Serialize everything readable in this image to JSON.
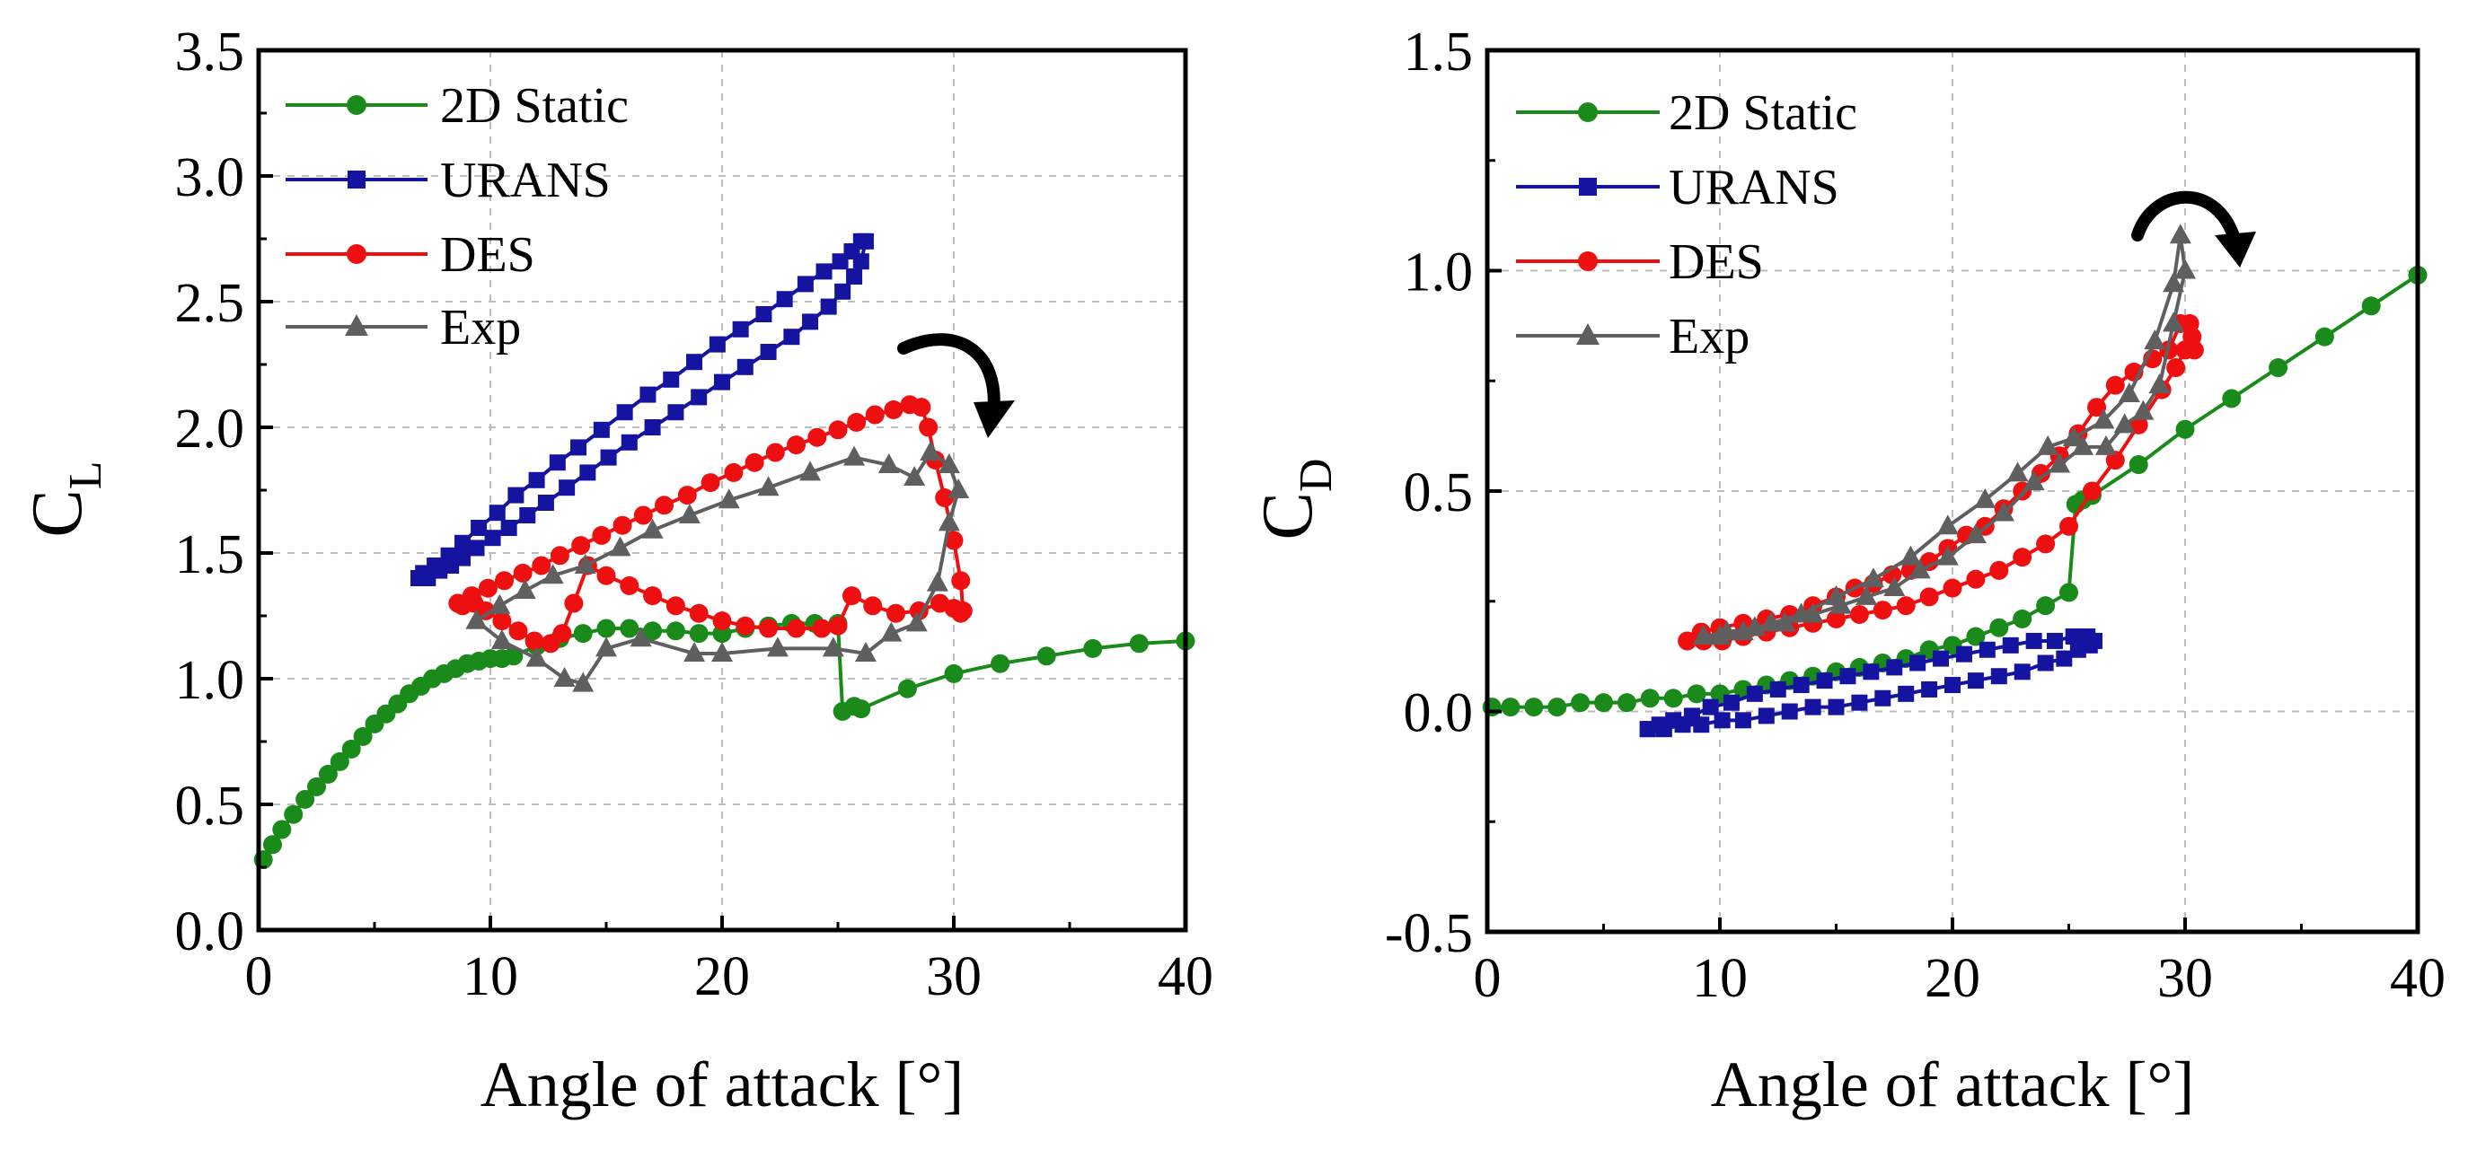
{
  "chart_data": [
    {
      "type": "line",
      "panel": "left",
      "xlabel": "Angle of attack [°]",
      "ylabel_main": "C",
      "ylabel_sub": "L",
      "xlim": [
        0,
        40
      ],
      "ylim": [
        0,
        3.5
      ],
      "grid": true,
      "legend_position": "top-left",
      "xticks": [
        "0",
        "10",
        "20",
        "30",
        "40"
      ],
      "yticks": [
        "0.0",
        "0.5",
        "1.0",
        "1.5",
        "2.0",
        "2.5",
        "3.0",
        "3.5"
      ],
      "series": [
        {
          "name": "2D Static",
          "color": "#1a8a1a",
          "marker": "circle",
          "x": [
            0.2,
            0.6,
            1.0,
            1.5,
            2.0,
            2.5,
            3.0,
            3.5,
            4.0,
            4.5,
            5.0,
            5.5,
            6.0,
            6.5,
            7.0,
            7.5,
            8.0,
            8.5,
            9.0,
            9.5,
            10.0,
            10.5,
            11.0,
            12.0,
            13.0,
            14.0,
            15.0,
            16.0,
            17.0,
            18.0,
            19.0,
            20.0,
            21.0,
            22.0,
            23.0,
            24.0,
            25.0,
            25.2,
            25.7,
            26.0,
            28.0,
            30.0,
            32.0,
            34.0,
            36.0,
            38.0,
            40.0
          ],
          "y": [
            0.28,
            0.34,
            0.4,
            0.46,
            0.52,
            0.57,
            0.62,
            0.67,
            0.72,
            0.77,
            0.82,
            0.86,
            0.9,
            0.94,
            0.97,
            1.0,
            1.02,
            1.04,
            1.06,
            1.07,
            1.08,
            1.08,
            1.09,
            1.13,
            1.16,
            1.18,
            1.2,
            1.2,
            1.19,
            1.19,
            1.18,
            1.18,
            1.2,
            1.21,
            1.22,
            1.22,
            1.22,
            0.87,
            0.89,
            0.88,
            0.96,
            1.02,
            1.06,
            1.09,
            1.12,
            1.14,
            1.15
          ]
        },
        {
          "name": "URANS",
          "color": "#1414a0",
          "marker": "square",
          "x": [
            6.9,
            7.3,
            7.8,
            8.3,
            8.8,
            9.4,
            10.1,
            10.8,
            11.6,
            12.4,
            13.3,
            14.2,
            15.1,
            16.0,
            17.0,
            18.0,
            19.0,
            20.0,
            21.0,
            22.0,
            23.0,
            23.8,
            24.6,
            25.2,
            25.7,
            26.0,
            26.2,
            26.0,
            25.6,
            25.1,
            24.4,
            23.6,
            22.7,
            21.8,
            20.8,
            19.8,
            18.8,
            17.8,
            16.8,
            15.8,
            14.8,
            13.8,
            12.9,
            12.0,
            11.1,
            10.3,
            9.5,
            8.8,
            8.2,
            7.6,
            7.1,
            6.9
          ],
          "y": [
            1.4,
            1.4,
            1.43,
            1.45,
            1.48,
            1.52,
            1.56,
            1.6,
            1.65,
            1.7,
            1.76,
            1.82,
            1.88,
            1.94,
            2.0,
            2.06,
            2.12,
            2.18,
            2.24,
            2.3,
            2.36,
            2.42,
            2.48,
            2.54,
            2.6,
            2.66,
            2.74,
            2.74,
            2.7,
            2.66,
            2.62,
            2.57,
            2.51,
            2.45,
            2.39,
            2.33,
            2.26,
            2.19,
            2.13,
            2.06,
            1.99,
            1.92,
            1.86,
            1.79,
            1.73,
            1.66,
            1.6,
            1.54,
            1.49,
            1.45,
            1.42,
            1.4
          ]
        },
        {
          "name": "DES",
          "color": "#ee1010",
          "marker": "circle",
          "x": [
            8.6,
            9.2,
            9.9,
            10.6,
            11.4,
            12.2,
            13.0,
            13.9,
            14.8,
            15.7,
            16.6,
            17.5,
            18.5,
            19.5,
            20.5,
            21.4,
            22.3,
            23.2,
            24.1,
            25.0,
            25.8,
            26.6,
            27.4,
            28.1,
            28.6,
            28.9,
            29.2,
            29.6,
            30.0,
            30.3,
            30.4,
            30.3,
            30.0,
            29.4,
            28.5,
            27.5,
            26.5,
            25.6,
            25.0,
            24.3,
            23.2,
            22.0,
            21.0,
            20.0,
            19.0,
            18.0,
            17.0,
            16.0,
            15.0,
            14.2,
            13.6,
            13.1,
            12.6,
            11.9,
            11.2,
            10.5,
            9.8,
            9.3,
            8.8,
            8.6
          ],
          "y": [
            1.3,
            1.33,
            1.36,
            1.39,
            1.42,
            1.45,
            1.49,
            1.53,
            1.57,
            1.61,
            1.65,
            1.69,
            1.73,
            1.78,
            1.82,
            1.86,
            1.9,
            1.93,
            1.96,
            1.99,
            2.02,
            2.05,
            2.07,
            2.09,
            2.08,
            2.0,
            1.87,
            1.72,
            1.55,
            1.39,
            1.27,
            1.26,
            1.28,
            1.3,
            1.27,
            1.26,
            1.29,
            1.33,
            1.21,
            1.2,
            1.2,
            1.2,
            1.21,
            1.23,
            1.26,
            1.29,
            1.33,
            1.37,
            1.41,
            1.45,
            1.3,
            1.18,
            1.14,
            1.15,
            1.19,
            1.23,
            1.27,
            1.3,
            1.29,
            1.3
          ],
          "closed": true
        },
        {
          "name": "Exp",
          "color": "#5f5f5f",
          "marker": "triangle",
          "x": [
            9.4,
            10.4,
            11.5,
            12.7,
            14.1,
            15.6,
            17.0,
            18.6,
            20.3,
            22.0,
            23.8,
            25.7,
            27.2,
            28.3,
            29.0,
            29.8,
            30.2,
            29.8,
            29.3,
            28.4,
            27.3,
            26.2,
            24.8,
            22.4,
            20.0,
            18.8,
            16.5,
            15.0,
            14.0,
            13.2,
            12.0,
            10.5,
            9.4
          ],
          "y": [
            1.23,
            1.29,
            1.35,
            1.41,
            1.45,
            1.52,
            1.59,
            1.65,
            1.71,
            1.76,
            1.82,
            1.88,
            1.85,
            1.8,
            1.9,
            1.85,
            1.75,
            1.62,
            1.38,
            1.22,
            1.18,
            1.1,
            1.12,
            1.12,
            1.1,
            1.1,
            1.16,
            1.12,
            0.98,
            1.0,
            1.08,
            1.15,
            1.23
          ],
          "closed": true
        }
      ]
    },
    {
      "type": "line",
      "panel": "right",
      "xlabel": "Angle of attack [°]",
      "ylabel_main": "C",
      "ylabel_sub": "D",
      "xlim": [
        0,
        40
      ],
      "ylim": [
        -0.5,
        1.5
      ],
      "grid": true,
      "legend_position": "top-left",
      "xticks": [
        "0",
        "10",
        "20",
        "30",
        "40"
      ],
      "yticks": [
        "-0.5",
        "0.0",
        "0.5",
        "1.0",
        "1.5"
      ],
      "series": [
        {
          "name": "2D Static",
          "color": "#1a8a1a",
          "marker": "circle",
          "x": [
            0.2,
            1.0,
            2.0,
            3.0,
            4.0,
            5.0,
            6.0,
            7.0,
            8.0,
            9.0,
            10.0,
            11.0,
            12.0,
            13.0,
            14.0,
            15.0,
            16.0,
            17.0,
            18.0,
            19.0,
            20.0,
            21.0,
            22.0,
            23.0,
            24.0,
            25.0,
            25.3,
            25.6,
            26.0,
            28.0,
            30.0,
            32.0,
            34.0,
            36.0,
            38.0,
            40.0
          ],
          "y": [
            0.01,
            0.01,
            0.01,
            0.01,
            0.02,
            0.02,
            0.02,
            0.03,
            0.03,
            0.04,
            0.04,
            0.05,
            0.06,
            0.07,
            0.08,
            0.09,
            0.1,
            0.11,
            0.12,
            0.14,
            0.15,
            0.17,
            0.19,
            0.21,
            0.24,
            0.27,
            0.47,
            0.48,
            0.49,
            0.56,
            0.64,
            0.71,
            0.78,
            0.85,
            0.92,
            0.99
          ]
        },
        {
          "name": "URANS",
          "color": "#1414a0",
          "marker": "square",
          "x": [
            6.9,
            7.6,
            8.4,
            9.2,
            10.1,
            11.0,
            12.0,
            13.0,
            14.0,
            15.0,
            16.0,
            17.0,
            18.0,
            19.0,
            20.0,
            21.0,
            22.0,
            23.0,
            24.0,
            24.8,
            25.4,
            25.9,
            26.1,
            25.8,
            25.2,
            24.4,
            23.5,
            22.5,
            21.5,
            20.5,
            19.5,
            18.5,
            17.5,
            16.5,
            15.5,
            14.5,
            13.5,
            12.5,
            11.5,
            10.5,
            9.6,
            8.8,
            8.0,
            7.4,
            6.9
          ],
          "y": [
            -0.04,
            -0.04,
            -0.03,
            -0.03,
            -0.02,
            -0.02,
            -0.01,
            0.0,
            0.01,
            0.01,
            0.02,
            0.03,
            0.04,
            0.05,
            0.06,
            0.07,
            0.08,
            0.09,
            0.11,
            0.12,
            0.14,
            0.15,
            0.16,
            0.17,
            0.17,
            0.16,
            0.16,
            0.15,
            0.14,
            0.13,
            0.12,
            0.11,
            0.1,
            0.09,
            0.08,
            0.07,
            0.06,
            0.05,
            0.04,
            0.02,
            0.01,
            -0.01,
            -0.02,
            -0.03,
            -0.04
          ],
          "closed": true
        },
        {
          "name": "DES",
          "color": "#ee1010",
          "marker": "circle",
          "x": [
            8.6,
            9.3,
            10.1,
            11.0,
            12.0,
            13.0,
            14.0,
            15.0,
            16.0,
            17.0,
            18.0,
            19.0,
            20.0,
            21.0,
            22.0,
            23.0,
            24.0,
            25.0,
            26.0,
            27.0,
            28.0,
            29.0,
            29.6,
            30.0,
            30.3,
            30.4,
            30.2,
            29.8,
            29.3,
            28.6,
            27.8,
            27.0,
            26.2,
            25.4,
            24.6,
            23.8,
            23.0,
            22.2,
            21.4,
            20.6,
            19.8,
            19.0,
            18.2,
            17.4,
            16.6,
            15.8,
            15.0,
            14.0,
            13.0,
            12.0,
            11.0,
            10.0,
            9.2,
            8.6
          ],
          "y": [
            0.16,
            0.16,
            0.16,
            0.17,
            0.18,
            0.19,
            0.2,
            0.21,
            0.22,
            0.23,
            0.24,
            0.26,
            0.28,
            0.3,
            0.32,
            0.35,
            0.38,
            0.42,
            0.5,
            0.57,
            0.65,
            0.73,
            0.78,
            0.82,
            0.85,
            0.82,
            0.88,
            0.88,
            0.82,
            0.8,
            0.77,
            0.74,
            0.69,
            0.63,
            0.58,
            0.54,
            0.5,
            0.46,
            0.42,
            0.4,
            0.37,
            0.34,
            0.32,
            0.31,
            0.29,
            0.28,
            0.26,
            0.24,
            0.22,
            0.21,
            0.2,
            0.19,
            0.18,
            0.16
          ],
          "closed": true
        },
        {
          "name": "Exp",
          "color": "#5f5f5f",
          "marker": "triangle",
          "x": [
            9.3,
            10.0,
            11.0,
            12.2,
            13.5,
            15.0,
            16.6,
            18.2,
            19.8,
            21.4,
            22.8,
            24.1,
            25.2,
            26.5,
            27.6,
            28.7,
            29.5,
            29.8,
            30.0,
            29.5,
            28.9,
            28.2,
            27.4,
            26.6,
            25.6,
            24.6,
            23.5,
            22.2,
            21.0,
            19.8,
            18.6,
            17.5,
            16.3,
            15.2,
            14.0,
            12.8,
            11.5,
            10.3,
            9.3
          ],
          "y": [
            0.17,
            0.17,
            0.18,
            0.2,
            0.22,
            0.26,
            0.3,
            0.35,
            0.42,
            0.48,
            0.54,
            0.6,
            0.62,
            0.66,
            0.72,
            0.84,
            0.97,
            1.08,
            1.0,
            0.88,
            0.74,
            0.68,
            0.65,
            0.6,
            0.6,
            0.56,
            0.52,
            0.45,
            0.4,
            0.35,
            0.32,
            0.28,
            0.26,
            0.24,
            0.22,
            0.2,
            0.19,
            0.18,
            0.17
          ],
          "closed": true
        }
      ]
    }
  ]
}
